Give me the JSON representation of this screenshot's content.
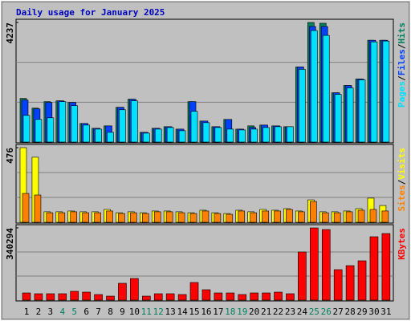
{
  "title": "Daily usage for January 2025",
  "title_color": "#0000c0",
  "legend_separator": "/",
  "chart_data": [
    {
      "type": "bar",
      "ylim": [
        0,
        4237
      ],
      "yticks": [
        4237
      ],
      "series": [
        {
          "name": "Hits",
          "color": "#00805c",
          "values": [
            1546,
            1202,
            1431,
            1460,
            1403,
            658,
            487,
            573,
            1231,
            1517,
            344,
            487,
            544,
            458,
            1431,
            744,
            544,
            802,
            458,
            573,
            601,
            573,
            544,
            2662,
            4237,
            4209,
            1746,
            2004,
            2233,
            3607,
            3607
          ]
        },
        {
          "name": "Files",
          "color": "#0040ff",
          "values": [
            1489,
            1174,
            1403,
            1460,
            1403,
            658,
            487,
            573,
            1231,
            1517,
            344,
            487,
            544,
            458,
            1431,
            744,
            544,
            802,
            458,
            515,
            601,
            573,
            544,
            2662,
            4094,
            4094,
            1746,
            2004,
            2233,
            3607,
            3607
          ]
        },
        {
          "name": "Pages",
          "color": "#00e0ff",
          "values": [
            945,
            802,
            859,
            1431,
            1288,
            601,
            458,
            344,
            1145,
            1460,
            315,
            458,
            515,
            401,
            1088,
            687,
            515,
            458,
            429,
            458,
            515,
            544,
            544,
            2577,
            3951,
            3779,
            1689,
            1918,
            2204,
            3550,
            3578
          ]
        }
      ]
    },
    {
      "type": "bar",
      "ylim": [
        0,
        476
      ],
      "yticks": [
        476
      ],
      "series": [
        {
          "name": "Visits",
          "color": "#ffff00",
          "values": [
            476,
            415,
            67,
            67,
            72,
            67,
            67,
            82,
            61,
            67,
            61,
            72,
            72,
            67,
            61,
            77,
            61,
            56,
            77,
            67,
            82,
            77,
            87,
            72,
            143,
            67,
            67,
            72,
            87,
            154,
            107
          ]
        },
        {
          "name": "Sites",
          "color": "#ff8000",
          "values": [
            184,
            174,
            61,
            61,
            67,
            61,
            61,
            72,
            56,
            61,
            56,
            67,
            67,
            61,
            56,
            72,
            56,
            51,
            72,
            61,
            72,
            72,
            82,
            67,
            133,
            61,
            61,
            67,
            77,
            82,
            72
          ]
        }
      ]
    },
    {
      "type": "bar",
      "ylim": [
        0,
        340294
      ],
      "yticks": [
        340294
      ],
      "categories": [
        "1",
        "2",
        "3",
        "4",
        "5",
        "6",
        "7",
        "8",
        "9",
        "10",
        "11",
        "12",
        "13",
        "14",
        "15",
        "16",
        "17",
        "18",
        "19",
        "20",
        "21",
        "22",
        "23",
        "24",
        "25",
        "26",
        "27",
        "28",
        "29",
        "30",
        "31"
      ],
      "category_colors": [
        "#000000",
        "#000000",
        "#000000",
        "#00805c",
        "#00805c",
        "#000000",
        "#000000",
        "#000000",
        "#000000",
        "#000000",
        "#00805c",
        "#00805c",
        "#000000",
        "#000000",
        "#000000",
        "#000000",
        "#000000",
        "#00805c",
        "#00805c",
        "#000000",
        "#000000",
        "#000000",
        "#000000",
        "#000000",
        "#00805c",
        "#00805c",
        "#000000",
        "#000000",
        "#000000",
        "#000000",
        "#000000"
      ],
      "series": [
        {
          "name": "KBytes",
          "color": "#ff0000",
          "values": [
            34030,
            30250,
            30250,
            30250,
            41590,
            37810,
            26470,
            18900,
            79400,
            102090,
            18900,
            30250,
            30250,
            26470,
            83180,
            49150,
            34030,
            34030,
            26470,
            34030,
            34030,
            37810,
            30250,
            226860,
            340294,
            332730,
            143680,
            162580,
            185270,
            298700,
            313820
          ]
        }
      ]
    }
  ]
}
